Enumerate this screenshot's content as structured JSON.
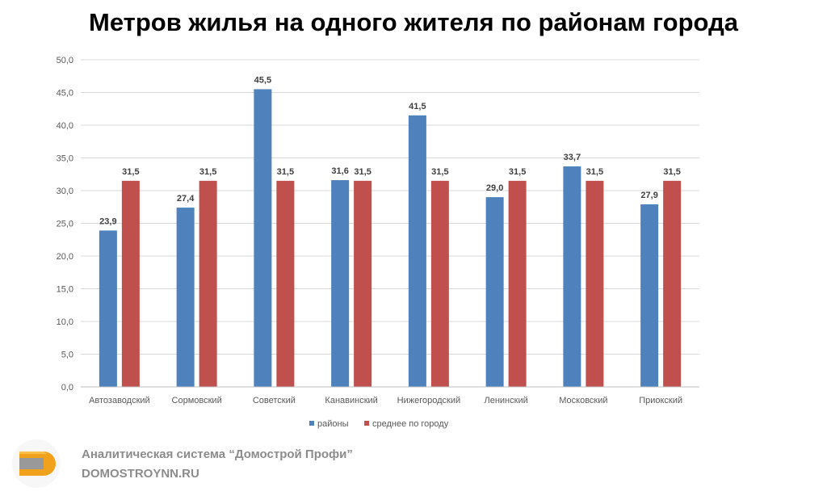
{
  "chart_data": {
    "type": "bar",
    "title": "Метров жилья на одного жителя по районам города",
    "categories": [
      "Автозаводский",
      "Сормовский",
      "Советский",
      "Канавинский",
      "Нижегородский",
      "Ленинский",
      "Московский",
      "Приокский"
    ],
    "series": [
      {
        "name": "районы",
        "color": "#4f81bd",
        "values": [
          23.9,
          27.4,
          45.5,
          31.6,
          41.5,
          29.0,
          33.7,
          27.9
        ]
      },
      {
        "name": "среднее по городу",
        "color": "#c0504d",
        "values": [
          31.5,
          31.5,
          31.5,
          31.5,
          31.5,
          31.5,
          31.5,
          31.5
        ]
      }
    ],
    "ylim": [
      0,
      50
    ],
    "yticks": [
      "0,0",
      "5,0",
      "10,0",
      "15,0",
      "20,0",
      "25,0",
      "30,0",
      "35,0",
      "40,0",
      "45,0",
      "50,0"
    ],
    "grid": true,
    "legend": "bottom"
  },
  "footer": {
    "line1": "Аналитическая система “Домострой Профи”",
    "line2": "DOMOSTROYNN.RU"
  }
}
